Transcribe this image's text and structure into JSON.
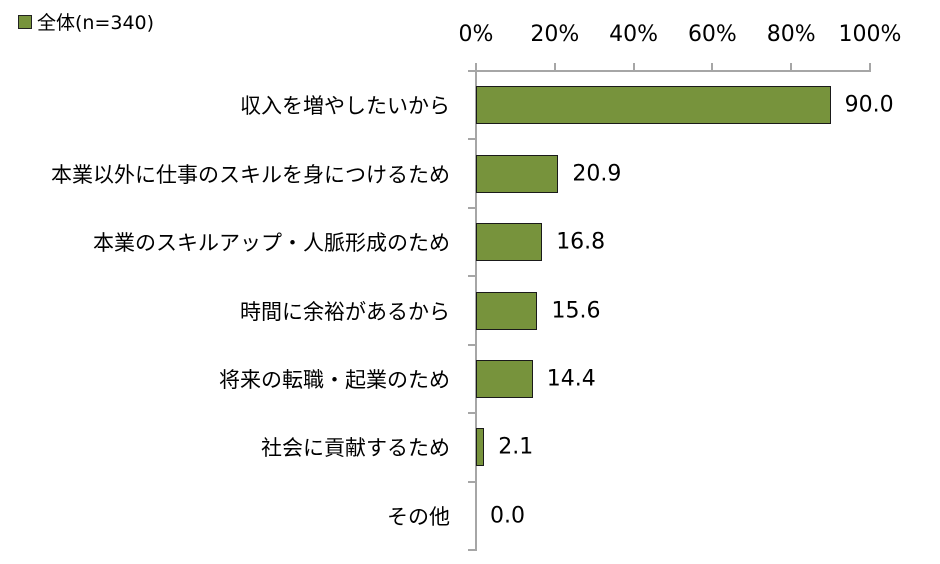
{
  "chart_data": {
    "type": "bar",
    "orientation": "horizontal",
    "title": "",
    "xlabel": "",
    "ylabel": "",
    "xlim": [
      0,
      100
    ],
    "x_ticks": [
      "0%",
      "20%",
      "40%",
      "60%",
      "80%",
      "100%"
    ],
    "x_axis_position": "top",
    "grid": false,
    "legend_position": "top-left",
    "categories": [
      "収入を増やしたいから",
      "本業以外に仕事のスキルを身につけるため",
      "本業のスキルアップ・人脈形成のため",
      "時間に余裕があるから",
      "将来の転職・起業のため",
      "社会に貢献するため",
      "その他"
    ],
    "series": [
      {
        "name": "全体(n=340)",
        "color": "#77933C",
        "values": [
          90.0,
          20.9,
          16.8,
          15.6,
          14.4,
          2.1,
          0.0
        ]
      }
    ],
    "value_labels": [
      "90.0",
      "20.9",
      "16.8",
      "15.6",
      "14.4",
      "2.1",
      "0.0"
    ]
  },
  "legend": {
    "label": "全体(n=340)"
  }
}
